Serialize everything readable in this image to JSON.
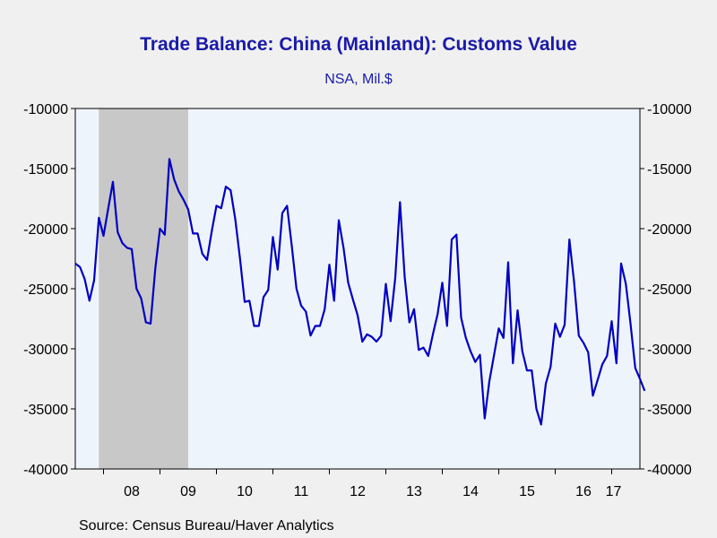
{
  "chart_data": {
    "type": "line",
    "title": "Trade Balance: China (Mainland): Customs Value",
    "subtitle": "NSA, Mil.$",
    "source": "Source:  Census Bureau/Haver Analytics",
    "ylim": [
      -40000,
      -10000
    ],
    "y_ticks": [
      -10000,
      -15000,
      -20000,
      -25000,
      -30000,
      -35000,
      -40000
    ],
    "y_tick_labels": [
      "-10000",
      "-15000",
      "-20000",
      "-25000",
      "-30000",
      "-35000",
      "-40000"
    ],
    "x_tick_labels": [
      "08",
      "09",
      "10",
      "11",
      "12",
      "13",
      "14",
      "15",
      "16",
      "17"
    ],
    "recession": {
      "start": "2007-12",
      "end": "2009-06"
    },
    "colors": {
      "line": "#0000c0",
      "plot_bg": "#eef4fc",
      "recession": "#c8c8c8",
      "title": "#1a1aa8"
    },
    "series": [
      {
        "values": [
          -22900,
          -23200,
          -24200,
          -26000,
          -24300,
          -19100,
          -20600,
          -18300,
          -16100,
          -20300,
          -21200,
          -21600,
          -21700,
          -25000,
          -25800,
          -27800,
          -27900,
          -23300,
          -20000,
          -20500,
          -14200,
          -15900,
          -16900,
          -17600,
          -18400,
          -20400,
          -20400,
          -22100,
          -22600,
          -20200,
          -18100,
          -18300,
          -16500,
          -16800,
          -19200,
          -22500,
          -26100,
          -26000,
          -28100,
          -28100,
          -25700,
          -25100,
          -20700,
          -23400,
          -18700,
          -18100,
          -21400,
          -25000,
          -26400,
          -26900,
          -28900,
          -28100,
          -28100,
          -26700,
          -23000,
          -26000,
          -19300,
          -21600,
          -24500,
          -25900,
          -27200,
          -29400,
          -28800,
          -29000,
          -29400,
          -28900,
          -24600,
          -27700,
          -24100,
          -17800,
          -24000,
          -27800,
          -26700,
          -30100,
          -29900,
          -30600,
          -28800,
          -27100,
          -24500,
          -28100,
          -20900,
          -20500,
          -27400,
          -29100,
          -30200,
          -31100,
          -30500,
          -35800,
          -32700,
          -30500,
          -28300,
          -29100,
          -22800,
          -31200,
          -26800,
          -30200,
          -31800,
          -31800,
          -35000,
          -36300,
          -32900,
          -31500,
          -27900,
          -29000,
          -28000,
          -20900,
          -24400,
          -28900,
          -29500,
          -30300,
          -33900,
          -32600,
          -31300,
          -30600,
          -27700,
          -31200,
          -22900,
          -24600,
          -27900,
          -31600,
          -32500,
          -33500
        ]
      }
    ]
  }
}
